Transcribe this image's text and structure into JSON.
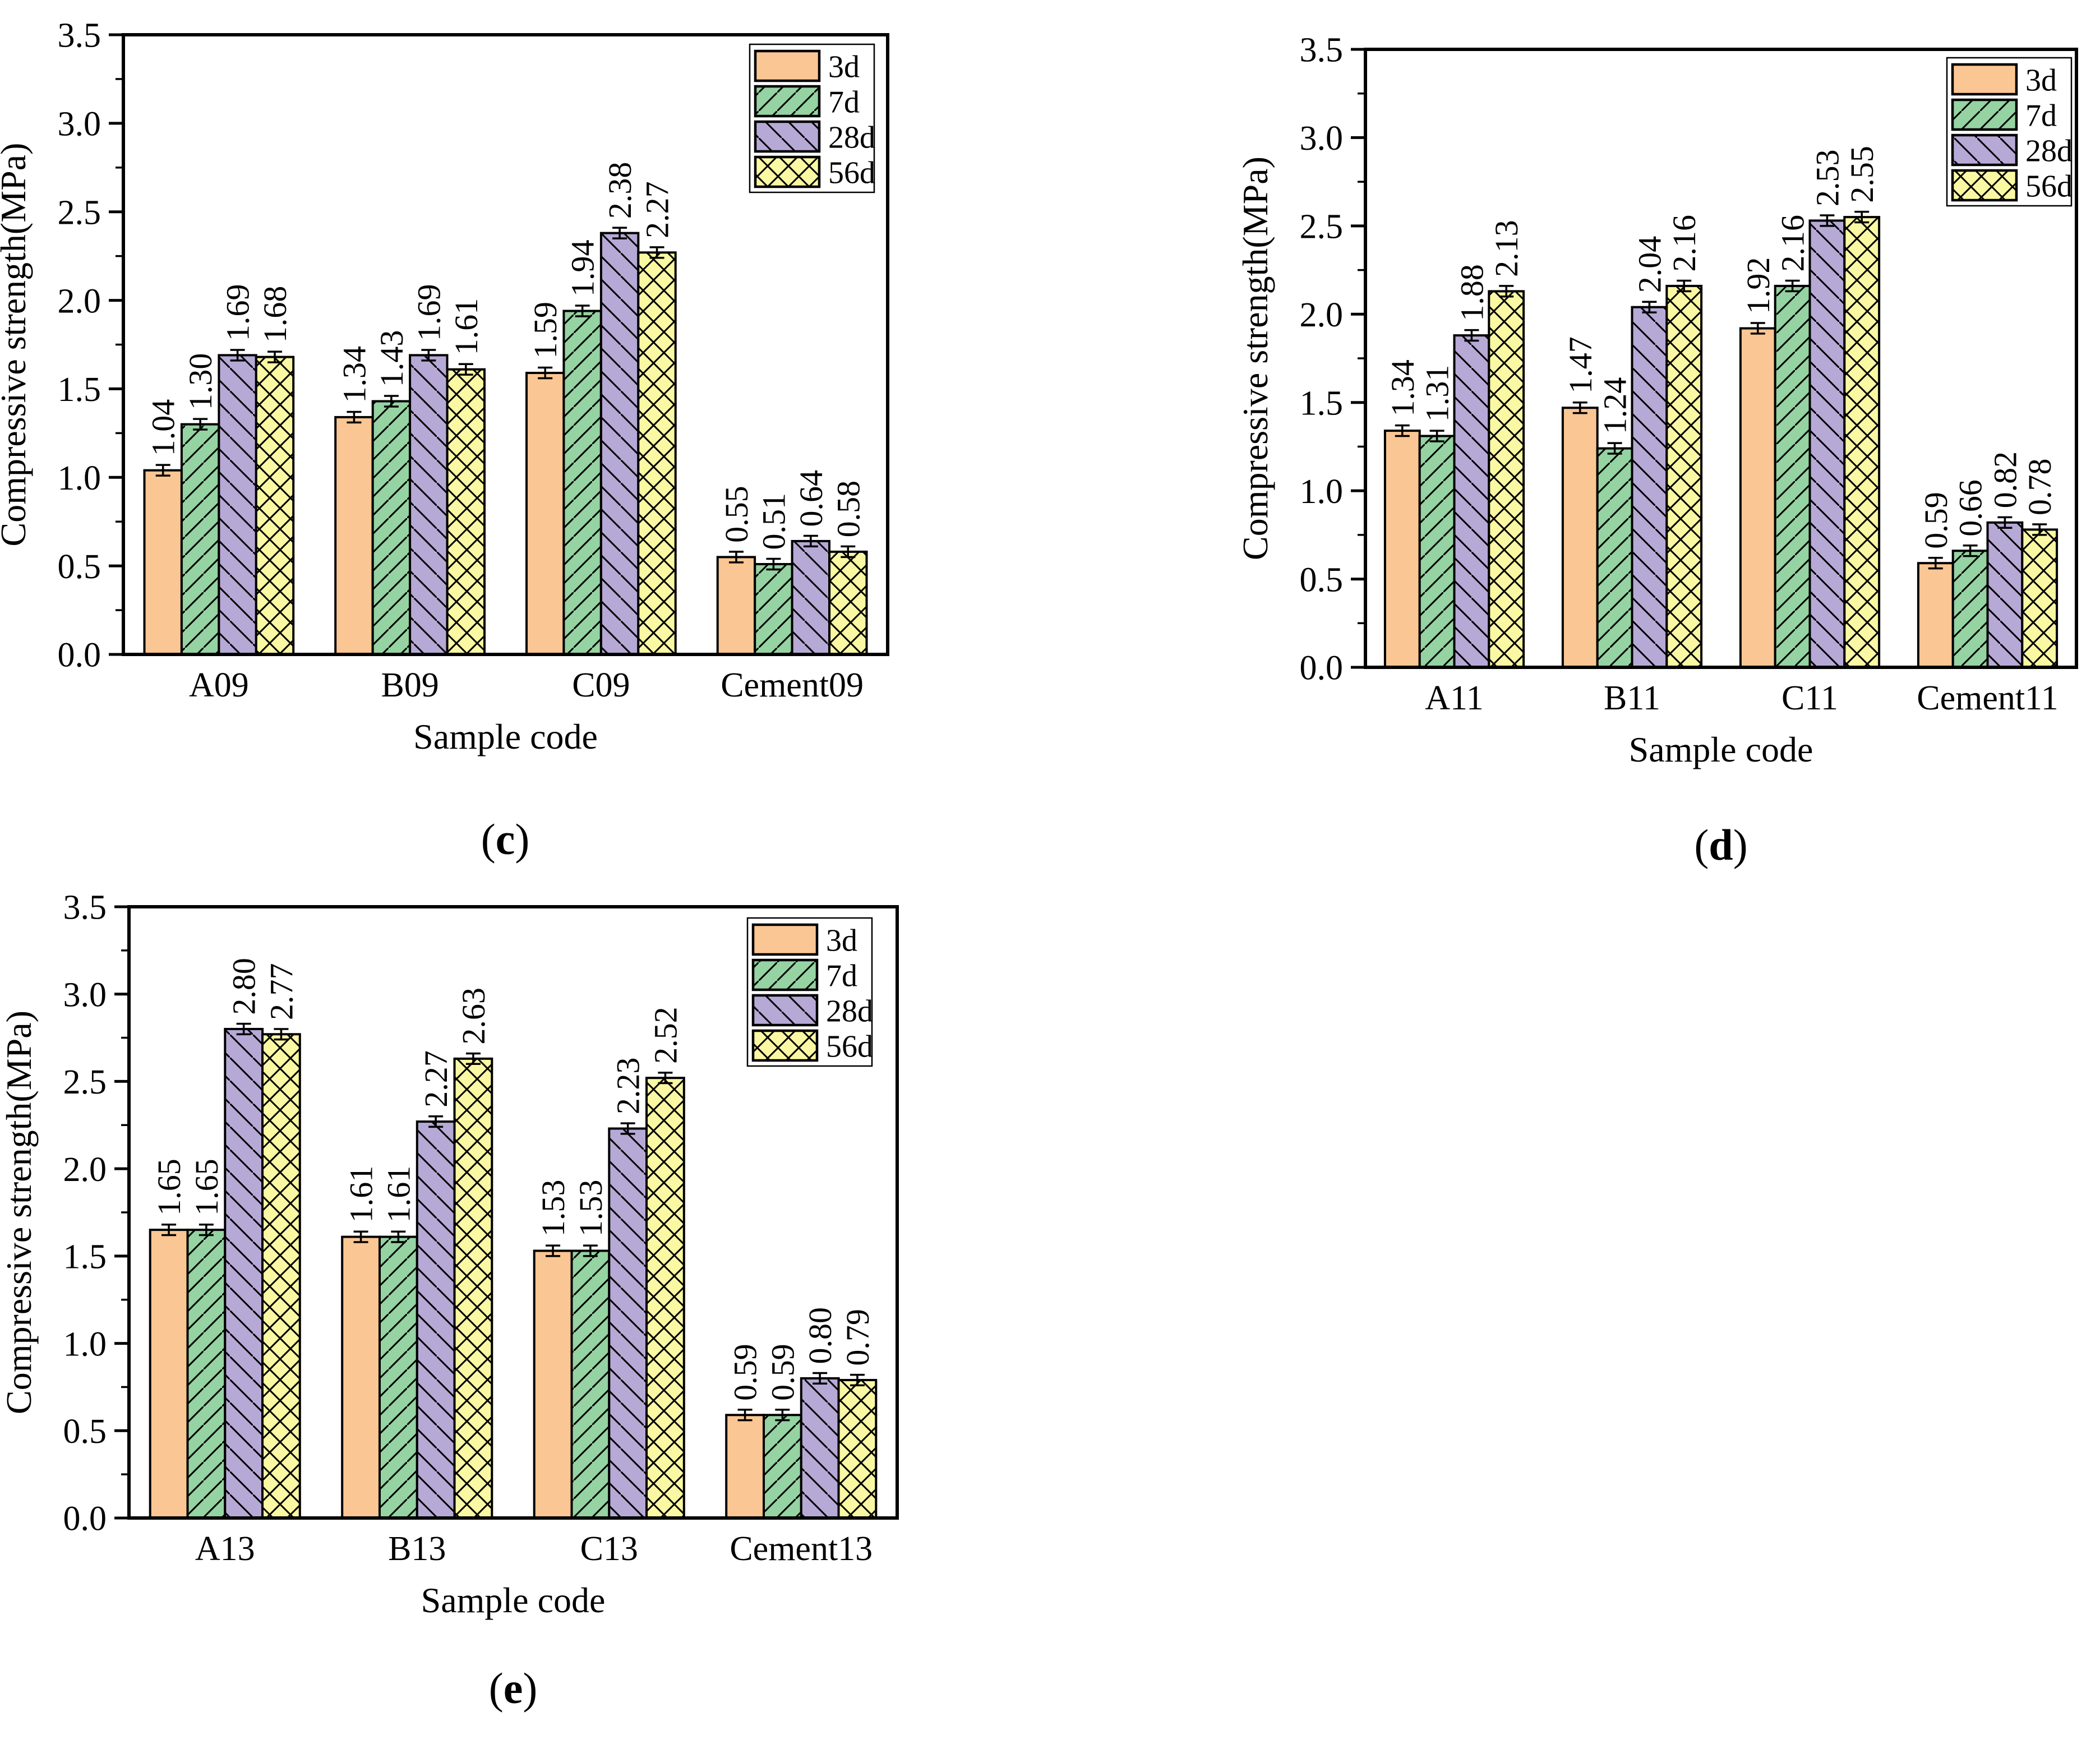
{
  "figure": {
    "background": "#ffffff",
    "captions": [
      {
        "id": "c",
        "open": "(",
        "letter": "c",
        "close": ")"
      },
      {
        "id": "d",
        "open": "(",
        "letter": "d",
        "close": ")"
      },
      {
        "id": "e",
        "open": "(",
        "letter": "e",
        "close": ")"
      }
    ]
  },
  "chart_data": [
    {
      "id": "c",
      "type": "bar",
      "caption": "(c)",
      "xlabel": "Sample code",
      "ylabel": "Compressive strength(MPa)",
      "ylim": [
        0.0,
        3.5
      ],
      "ytick_interval": 0.5,
      "ytick_minor_interval": 0.25,
      "ytick_labels": [
        "0.0",
        "0.5",
        "1.0",
        "1.5",
        "2.0",
        "2.5",
        "3.0",
        "3.5"
      ],
      "grid": false,
      "legend_position": "top-right",
      "legend_labels": [
        "3d",
        "7d",
        "28d",
        "56d"
      ],
      "value_labels": true,
      "value_label_orientation": "vertical",
      "error_bars": true,
      "error_bar_mpa": 0.03,
      "categories": [
        "A09",
        "B09",
        "C09",
        "Cement09"
      ],
      "series": [
        {
          "name": "3d",
          "color": "#FAC693",
          "hatch": "solid",
          "values": [
            1.04,
            1.34,
            1.59,
            0.55
          ]
        },
        {
          "name": "7d",
          "color": "#95D3A2",
          "hatch": "diagonal-forward",
          "values": [
            1.3,
            1.43,
            1.94,
            0.51
          ]
        },
        {
          "name": "28d",
          "color": "#B7A9D6",
          "hatch": "diagonal-backward",
          "values": [
            1.69,
            1.69,
            2.38,
            0.64
          ]
        },
        {
          "name": "56d",
          "color": "#FBF8A3",
          "hatch": "cross-diagonal",
          "values": [
            1.68,
            1.61,
            2.27,
            0.58
          ]
        }
      ]
    },
    {
      "id": "d",
      "type": "bar",
      "caption": "(d)",
      "xlabel": "Sample code",
      "ylabel": "Compressive strength(MPa)",
      "ylim": [
        0.0,
        3.5
      ],
      "ytick_interval": 0.5,
      "ytick_minor_interval": 0.25,
      "ytick_labels": [
        "0.0",
        "0.5",
        "1.0",
        "1.5",
        "2.0",
        "2.5",
        "3.0",
        "3.5"
      ],
      "grid": false,
      "legend_position": "top-right",
      "legend_labels": [
        "3d",
        "7d",
        "28d",
        "56d"
      ],
      "value_labels": true,
      "value_label_orientation": "vertical",
      "error_bars": true,
      "error_bar_mpa": 0.03,
      "categories": [
        "A11",
        "B11",
        "C11",
        "Cement11"
      ],
      "series": [
        {
          "name": "3d",
          "color": "#FAC693",
          "hatch": "solid",
          "values": [
            1.34,
            1.47,
            1.92,
            0.59
          ]
        },
        {
          "name": "7d",
          "color": "#95D3A2",
          "hatch": "diagonal-forward",
          "values": [
            1.31,
            1.24,
            2.16,
            0.66
          ]
        },
        {
          "name": "28d",
          "color": "#B7A9D6",
          "hatch": "diagonal-backward",
          "values": [
            1.88,
            2.04,
            2.53,
            0.82
          ]
        },
        {
          "name": "56d",
          "color": "#FBF8A3",
          "hatch": "cross-diagonal",
          "values": [
            2.13,
            2.16,
            2.55,
            0.78
          ]
        }
      ]
    },
    {
      "id": "e",
      "type": "bar",
      "caption": "(e)",
      "xlabel": "Sample code",
      "ylabel": "Compressive strength(MPa)",
      "ylim": [
        0.0,
        3.5
      ],
      "ytick_interval": 0.5,
      "ytick_minor_interval": 0.25,
      "ytick_labels": [
        "0.0",
        "0.5",
        "1.0",
        "1.5",
        "2.0",
        "2.5",
        "3.0",
        "3.5"
      ],
      "grid": false,
      "legend_position": "top-right",
      "legend_labels": [
        "3d",
        "7d",
        "28d",
        "56d"
      ],
      "value_labels": true,
      "value_label_orientation": "vertical",
      "error_bars": true,
      "error_bar_mpa": 0.03,
      "categories": [
        "A13",
        "B13",
        "C13",
        "Cement13"
      ],
      "series": [
        {
          "name": "3d",
          "color": "#FAC693",
          "hatch": "solid",
          "values": [
            1.65,
            1.61,
            1.53,
            0.59
          ]
        },
        {
          "name": "7d",
          "color": "#95D3A2",
          "hatch": "diagonal-forward",
          "values": [
            1.65,
            1.61,
            1.53,
            0.59
          ]
        },
        {
          "name": "28d",
          "color": "#B7A9D6",
          "hatch": "diagonal-backward",
          "values": [
            2.8,
            2.27,
            2.23,
            0.8
          ]
        },
        {
          "name": "56d",
          "color": "#FBF8A3",
          "hatch": "cross-diagonal",
          "values": [
            2.77,
            2.63,
            2.52,
            0.79
          ]
        }
      ]
    }
  ]
}
